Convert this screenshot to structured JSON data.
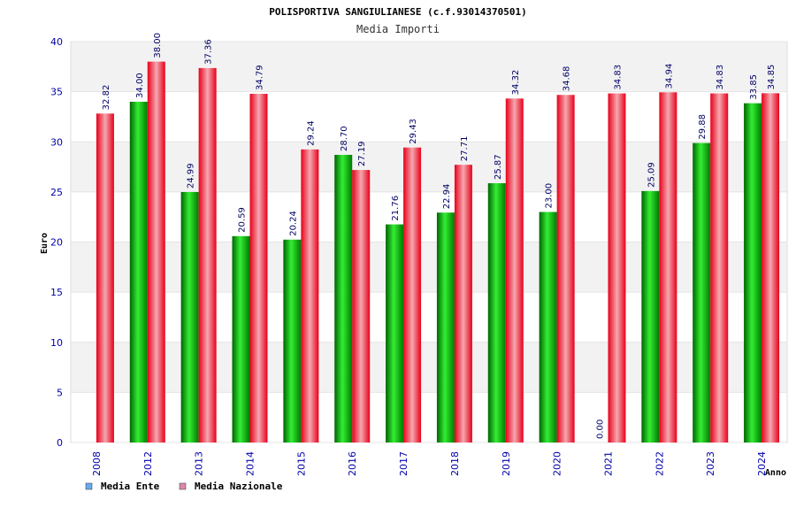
{
  "chart_data": {
    "type": "bar",
    "title": "POLISPORTIVA SANGIULIANESE (c.f.93014370501)",
    "subtitle": "Media Importi",
    "xlabel": "Anno",
    "ylabel": "Euro",
    "ylim": [
      0,
      40
    ],
    "yticks": [
      0,
      5,
      10,
      15,
      20,
      25,
      30,
      35,
      40
    ],
    "categories": [
      "2008",
      "2012",
      "2013",
      "2014",
      "2015",
      "2016",
      "2017",
      "2018",
      "2019",
      "2020",
      "2021",
      "2022",
      "2023",
      "2024"
    ],
    "series": [
      {
        "name": "Media Ente",
        "color": "#00b000",
        "legend_color": "#66aaee",
        "values": [
          null,
          34.0,
          24.99,
          20.59,
          20.24,
          28.7,
          21.76,
          22.94,
          25.87,
          23.0,
          0.0,
          25.09,
          29.88,
          33.85
        ],
        "labels": [
          "",
          "34.00",
          "24.99",
          "20.59",
          "20.24",
          "28.70",
          "21.76",
          "22.94",
          "25.87",
          "23.00",
          "0.00",
          "25.09",
          "29.88",
          "33.85"
        ]
      },
      {
        "name": "Media Nazionale",
        "color": "#ee1122",
        "legend_color": "#dd88aa",
        "values": [
          32.82,
          38.0,
          37.36,
          34.79,
          29.24,
          27.19,
          29.43,
          27.71,
          34.32,
          34.68,
          34.83,
          34.94,
          34.83,
          34.85
        ],
        "labels": [
          "32.82",
          "38.00",
          "37.36",
          "34.79",
          "29.24",
          "27.19",
          "29.43",
          "27.71",
          "34.32",
          "34.68",
          "34.83",
          "34.94",
          "34.83",
          "34.85"
        ]
      }
    ],
    "grid": true,
    "legend": "bottom-left"
  }
}
